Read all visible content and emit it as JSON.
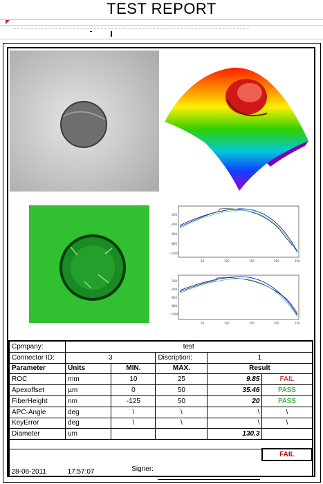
{
  "report_title": "TEST REPORT",
  "company": {
    "label": "Cpmpany:",
    "value": "test"
  },
  "connector": {
    "label": "Connector  ID:",
    "value": "3"
  },
  "description": {
    "label": "Discription:",
    "value": "1"
  },
  "table_headers": [
    "Parameter",
    "Units",
    "MIN.",
    "MAX.",
    "Result"
  ],
  "rows": [
    {
      "param": "ROC",
      "units": "mm",
      "min": "10",
      "max": "25",
      "value": "9.85",
      "status": "FAIL"
    },
    {
      "param": "Apexoffset",
      "units": "µm",
      "min": "0",
      "max": "50",
      "value": "35.46",
      "status": "PASS"
    },
    {
      "param": "FiberHeight",
      "units": "nm",
      "min": "-125",
      "max": "50",
      "value": "20",
      "status": "PASS"
    },
    {
      "param": "APC-Angle",
      "units": "deg",
      "min": "\\",
      "max": "\\",
      "value": "\\",
      "status": "\\"
    },
    {
      "param": "KeyError",
      "units": "deg",
      "min": "\\",
      "max": "\\",
      "value": "\\",
      "status": "\\"
    },
    {
      "param": "Diameter",
      "units": "um",
      "min": "",
      "max": "",
      "value": "130.3",
      "status": ""
    }
  ],
  "overall": "FAIL",
  "footer": {
    "date": "28-06-2011",
    "time": "17:57:07",
    "signer_label": "Signer:"
  },
  "plots": {
    "x_ticks": [
      "50",
      "100",
      "150",
      "200",
      "250"
    ],
    "top_y_ticks": [
      "-200",
      "-400",
      "-600",
      "-800",
      "-1000"
    ],
    "bottom_y_ticks": [
      "-200",
      "-400",
      "-600",
      "-800",
      "-1000"
    ]
  },
  "colors": {
    "fail": "#c00000",
    "pass": "#00a000"
  }
}
